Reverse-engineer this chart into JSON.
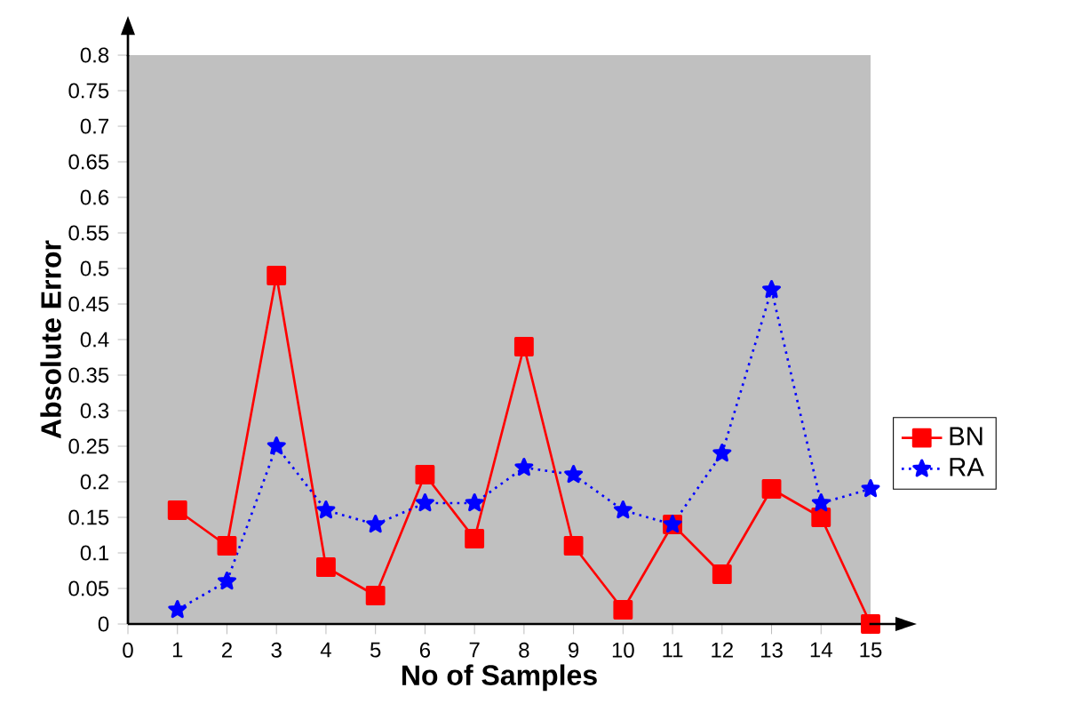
{
  "chart_data": {
    "type": "line",
    "xlabel": "No of Samples",
    "ylabel": "Absolute  Error",
    "x": [
      1,
      2,
      3,
      4,
      5,
      6,
      7,
      8,
      9,
      10,
      11,
      12,
      13,
      14,
      15
    ],
    "series": [
      {
        "name": "BN",
        "color": "#ff0000",
        "marker": "square",
        "line_style": "solid",
        "values": [
          0.16,
          0.11,
          0.49,
          0.08,
          0.04,
          0.21,
          0.12,
          0.39,
          0.11,
          0.02,
          0.14,
          0.07,
          0.19,
          0.15,
          0
        ]
      },
      {
        "name": "RA",
        "color": "#0000ff",
        "marker": "star",
        "line_style": "dotted",
        "values": [
          0.02,
          0.06,
          0.25,
          0.16,
          0.14,
          0.17,
          0.17,
          0.22,
          0.21,
          0.16,
          0.14,
          0.24,
          0.47,
          0.17,
          0.19
        ]
      }
    ],
    "xlim": [
      0,
      15
    ],
    "ylim": [
      0,
      0.8
    ],
    "xticks": [
      0,
      1,
      2,
      3,
      4,
      5,
      6,
      7,
      8,
      9,
      10,
      11,
      12,
      13,
      14,
      15
    ],
    "yticks": [
      0,
      0.05,
      0.1,
      0.15,
      0.2,
      0.25,
      0.3,
      0.35,
      0.4,
      0.45,
      0.5,
      0.55,
      0.6,
      0.65,
      0.7,
      0.75,
      0.8
    ],
    "grid": false,
    "legend": "right"
  }
}
